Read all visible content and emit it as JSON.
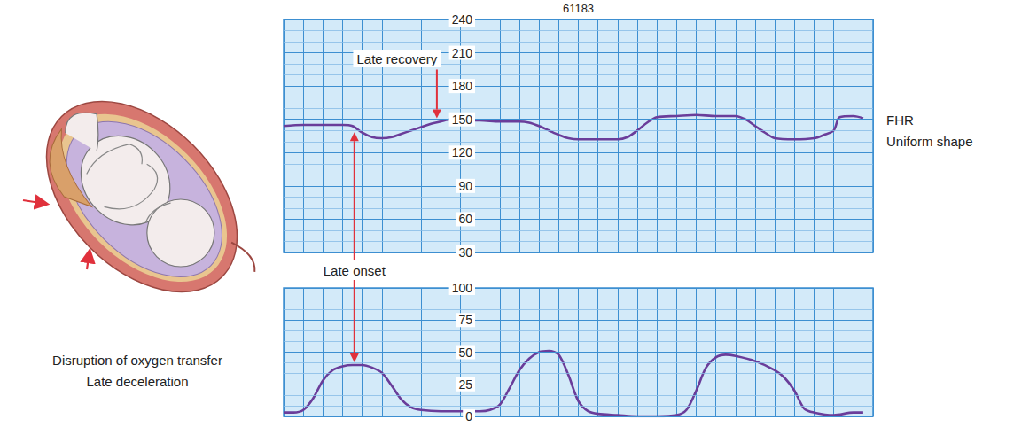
{
  "illustration": {
    "caption": [
      "Disruption of oxygen transfer",
      "Late deceleration"
    ]
  },
  "chart_data": [
    {
      "type": "line",
      "title": "61183",
      "x": [
        0,
        1,
        2,
        3,
        3.5,
        4,
        4.5,
        5,
        5.5,
        6,
        6.5,
        7,
        7.5,
        8,
        8.5,
        9,
        10,
        11,
        12,
        12.5,
        13,
        13.5,
        14,
        14.5,
        15,
        16,
        17,
        17.5,
        18,
        18.5,
        19,
        20,
        21,
        22,
        23,
        23.5,
        24,
        24.5,
        25,
        26,
        27,
        27.5,
        28,
        28.3,
        29,
        29.5
      ],
      "series": [
        {
          "name": "FHR",
          "color": "#6a3d9a",
          "values": [
            144,
            145,
            145,
            145,
            144,
            138,
            134,
            133,
            134,
            137,
            140,
            143,
            146,
            148,
            150,
            149,
            149,
            148,
            148,
            147,
            144,
            140,
            136,
            133,
            132,
            132,
            132,
            134,
            140,
            147,
            152,
            153,
            154,
            153,
            153,
            150,
            144,
            138,
            133,
            132,
            133,
            136,
            140,
            152,
            153,
            151
          ]
        }
      ],
      "xlim": [
        0,
        30
      ],
      "xticks": [
        0,
        1,
        2,
        3,
        4,
        5,
        6,
        7,
        8,
        9,
        10,
        11,
        12,
        13,
        14,
        15,
        16,
        17,
        18,
        19,
        20,
        21,
        22,
        23,
        24,
        25,
        26,
        27,
        28,
        29,
        30
      ],
      "ylim": [
        30,
        240
      ],
      "yticks": [
        30,
        60,
        90,
        120,
        150,
        180,
        210,
        240
      ],
      "grid": true,
      "tick_labels": "y",
      "annotations": [
        {
          "text": "Late recovery",
          "x": 7.8,
          "y": 147
        },
        {
          "text": "Late onset",
          "x": 3.6,
          "y": 144,
          "uc_y": 40
        },
        {
          "text": "Uniform shape"
        }
      ]
    },
    {
      "type": "line",
      "x": [
        0,
        0.5,
        1,
        1.5,
        2,
        2.5,
        3,
        3.5,
        4,
        4.5,
        5,
        5.5,
        6,
        6.5,
        7,
        8,
        9,
        10,
        10.5,
        11,
        11.5,
        12,
        12.5,
        13,
        13.5,
        14,
        14.5,
        15,
        15.5,
        16,
        17,
        18,
        19,
        20,
        20.5,
        21,
        21.5,
        22,
        22.5,
        23,
        24,
        25,
        25.5,
        26,
        26.5,
        27,
        28,
        29,
        29.5
      ],
      "series": [
        {
          "color": "#6a3d9a",
          "values": [
            3,
            3,
            5,
            14,
            28,
            36,
            39,
            40,
            40,
            38,
            34,
            24,
            13,
            7,
            5,
            4,
            4,
            4,
            5,
            9,
            22,
            36,
            45,
            50,
            51,
            48,
            32,
            12,
            4,
            2,
            1,
            0,
            0,
            1,
            5,
            20,
            38,
            46,
            48,
            47,
            43,
            36,
            30,
            20,
            6,
            3,
            1,
            3,
            3
          ]
        }
      ],
      "xlim": [
        0,
        30
      ],
      "xticks": [
        0,
        1,
        2,
        3,
        4,
        5,
        6,
        7,
        8,
        9,
        10,
        11,
        12,
        13,
        14,
        15,
        16,
        17,
        18,
        19,
        20,
        21,
        22,
        23,
        24,
        25,
        26,
        27,
        28,
        29,
        30
      ],
      "ylim": [
        0,
        100
      ],
      "yticks": [
        0,
        25,
        50,
        75,
        100
      ],
      "grid": true,
      "tick_labels": "y"
    }
  ]
}
